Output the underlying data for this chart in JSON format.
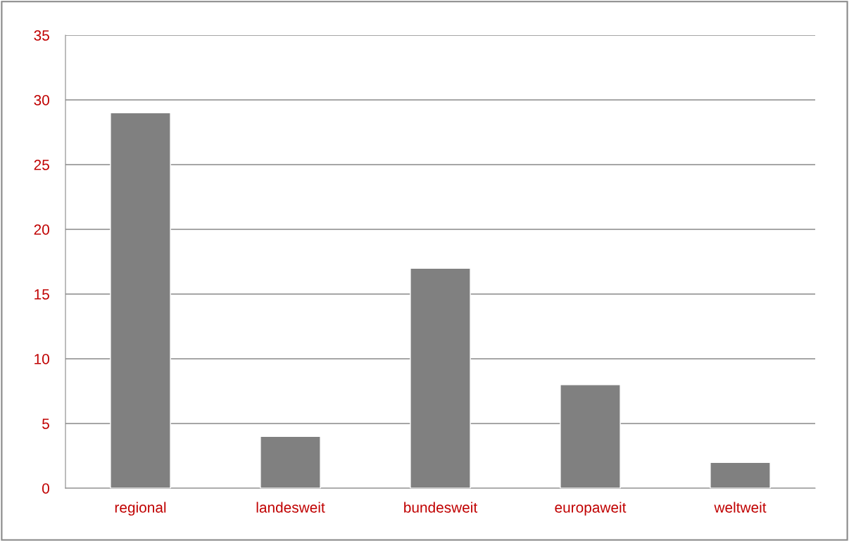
{
  "chart_data": {
    "type": "bar",
    "categories": [
      "regional",
      "landesweit",
      "bundesweit",
      "europaweit",
      "weltweit"
    ],
    "values": [
      29,
      4,
      17,
      8,
      2
    ],
    "color": "#808080",
    "ylim": [
      0,
      35
    ],
    "yticks": [
      0,
      5,
      10,
      15,
      20,
      25,
      30,
      35
    ],
    "grid": "y",
    "legend": false
  }
}
